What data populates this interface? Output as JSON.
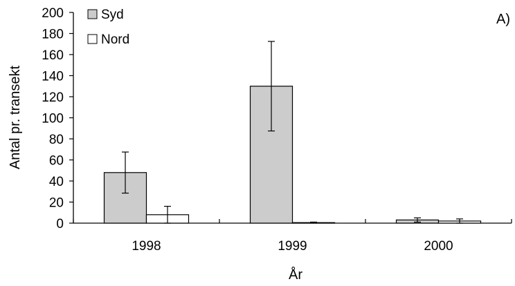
{
  "chart_data": {
    "type": "bar",
    "panel_label": "A)",
    "xlabel": "År",
    "ylabel": "Antal pr. transekt",
    "categories": [
      "1998",
      "1999",
      "2000"
    ],
    "ylim": [
      0,
      200
    ],
    "yticks": [
      0,
      20,
      40,
      60,
      80,
      100,
      120,
      140,
      160,
      180,
      200
    ],
    "grid": false,
    "legend_position": "top-left",
    "series": [
      {
        "name": "Syd",
        "color": "#cccccc",
        "values": [
          48,
          130,
          3
        ],
        "error": [
          19.5,
          42.5,
          2
        ]
      },
      {
        "name": "Nord",
        "color": "#ffffff",
        "values": [
          8,
          0.5,
          2
        ],
        "error": [
          8,
          0.5,
          2
        ]
      }
    ]
  }
}
